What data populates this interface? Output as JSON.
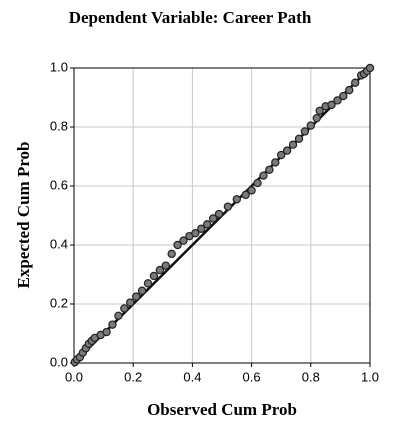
{
  "chart_data": {
    "type": "scatter",
    "title": "Dependent Variable: Career Path",
    "x_label": "Observed Cum Prob",
    "y_label": "Expected Cum Prob",
    "xlim": [
      0,
      1
    ],
    "ylim": [
      0,
      1
    ],
    "xticks": [
      {
        "value": 0,
        "label": "0.0"
      },
      0.2,
      0.4,
      0.6,
      0.8,
      {
        "value": 1,
        "label": "1.0"
      }
    ],
    "yticks": [
      {
        "value": 0,
        "label": "0.0"
      },
      0.2,
      0.4,
      0.6,
      0.8,
      {
        "value": 1,
        "label": "1.0"
      }
    ],
    "grid": true,
    "color": "#7a7a7a",
    "x": [
      0.003,
      0.01,
      0.02,
      0.03,
      0.04,
      0.05,
      0.06,
      0.07,
      0.09,
      0.11,
      0.13,
      0.15,
      0.17,
      0.19,
      0.21,
      0.23,
      0.25,
      0.27,
      0.29,
      0.31,
      0.33,
      0.35,
      0.37,
      0.39,
      0.41,
      0.43,
      0.45,
      0.47,
      0.49,
      0.52,
      0.55,
      0.58,
      0.6,
      0.62,
      0.64,
      0.66,
      0.68,
      0.7,
      0.72,
      0.74,
      0.76,
      0.78,
      0.8,
      0.82,
      0.83,
      0.85,
      0.87,
      0.89,
      0.91,
      0.93,
      0.95,
      0.97,
      0.98,
      0.99,
      1.0
    ],
    "values": [
      0.003,
      0.012,
      0.02,
      0.035,
      0.05,
      0.065,
      0.075,
      0.085,
      0.095,
      0.105,
      0.13,
      0.16,
      0.185,
      0.205,
      0.225,
      0.245,
      0.27,
      0.295,
      0.315,
      0.33,
      0.37,
      0.4,
      0.415,
      0.43,
      0.44,
      0.455,
      0.47,
      0.49,
      0.505,
      0.53,
      0.555,
      0.57,
      0.585,
      0.61,
      0.635,
      0.655,
      0.68,
      0.705,
      0.72,
      0.74,
      0.76,
      0.785,
      0.805,
      0.83,
      0.855,
      0.87,
      0.875,
      0.89,
      0.905,
      0.925,
      0.95,
      0.975,
      0.98,
      0.99,
      1.0
    ]
  }
}
